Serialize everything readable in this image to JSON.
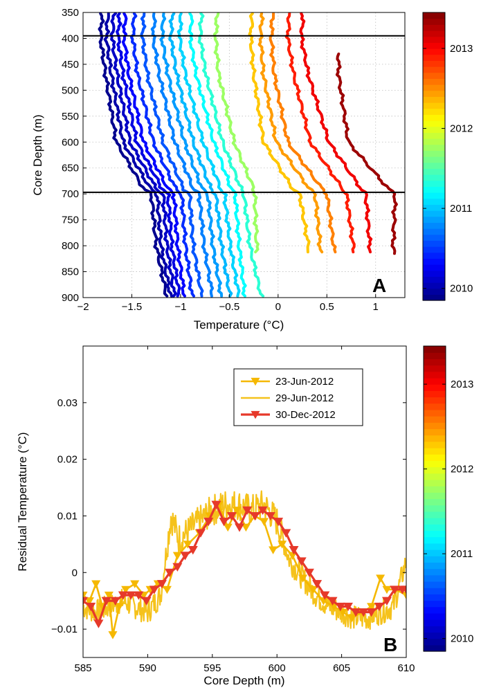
{
  "chart_data": [
    {
      "panel": "A",
      "type": "line",
      "xlabel": "Temperature (°C)",
      "ylabel": "Core Depth (m)",
      "xlim": [
        -2,
        1.3
      ],
      "ylim": [
        350,
        900
      ],
      "y_reversed": true,
      "xticks": [
        -2,
        -1.5,
        -1,
        -0.5,
        0,
        0.5,
        1
      ],
      "xtick_labels": [
        "−2",
        "−1.5",
        "−1",
        "−0.5",
        "0",
        "0.5",
        "1"
      ],
      "yticks": [
        350,
        400,
        450,
        500,
        550,
        600,
        650,
        700,
        750,
        800,
        850,
        900
      ],
      "ytick_labels": [
        "350",
        "400",
        "450",
        "500",
        "550",
        "600",
        "650",
        "700",
        "750",
        "800",
        "850",
        "900"
      ],
      "grid": true,
      "reference_lines_depth": [
        395,
        697
      ],
      "colorbar": {
        "colormap": "jet",
        "ticks": [
          2010,
          2011,
          2012,
          2013
        ],
        "tick_labels": [
          "2010",
          "2011",
          "2012",
          "2013"
        ],
        "range": [
          2009.85,
          2013.45
        ]
      },
      "series_note": "approximately 38 temperature profiles, colored by measurement date",
      "series": [
        {
          "date": 2009.9,
          "t400": -1.82,
          "t470": -1.77,
          "t600": -1.66,
          "t690": -1.38,
          "t700": -1.3,
          "t800": -1.25,
          "t900": -1.14
        },
        {
          "date": 2010.0,
          "t400": -1.76,
          "t470": -1.71,
          "t600": -1.59,
          "t690": -1.31,
          "t700": -1.24,
          "t800": -1.2,
          "t900": -1.1
        },
        {
          "date": 2010.1,
          "t400": -1.7,
          "t470": -1.65,
          "t600": -1.52,
          "t690": -1.25,
          "t700": -1.18,
          "t800": -1.14,
          "t900": -1.06
        },
        {
          "date": 2010.2,
          "t400": -1.64,
          "t470": -1.59,
          "t600": -1.45,
          "t690": -1.19,
          "t700": -1.13,
          "t800": -1.09,
          "t900": -1.01
        },
        {
          "date": 2010.3,
          "t400": -1.58,
          "t470": -1.53,
          "t600": -1.38,
          "t690": -1.13,
          "t700": -1.07,
          "t800": -1.03,
          "t900": -0.96
        },
        {
          "date": 2010.45,
          "t400": -1.49,
          "t470": -1.44,
          "t600": -1.28,
          "t690": -1.05,
          "t700": -0.99,
          "t800": -0.95,
          "t900": -0.88
        },
        {
          "date": 2010.6,
          "t400": -1.39,
          "t470": -1.34,
          "t600": -1.18,
          "t690": -0.97,
          "t700": -0.91,
          "t800": -0.87,
          "t900": -0.78
        },
        {
          "date": 2010.75,
          "t400": -1.28,
          "t470": -1.22,
          "t600": -1.06,
          "t690": -0.87,
          "t700": -0.81,
          "t800": -0.76,
          "t900": -0.67
        },
        {
          "date": 2010.85,
          "t400": -1.19,
          "t470": -1.13,
          "t600": -0.96,
          "t690": -0.78,
          "t700": -0.72,
          "t800": -0.67,
          "t900": -0.58
        },
        {
          "date": 2010.95,
          "t400": -1.1,
          "t470": -1.04,
          "t600": -0.87,
          "t690": -0.69,
          "t700": -0.64,
          "t800": -0.58,
          "t900": -0.49
        },
        {
          "date": 2011.05,
          "t400": -1.01,
          "t470": -0.95,
          "t600": -0.77,
          "t690": -0.59,
          "t700": -0.55,
          "t800": -0.49,
          "t900": -0.4
        },
        {
          "date": 2011.2,
          "t400": -0.9,
          "t470": -0.84,
          "t600": -0.66,
          "t690": -0.48,
          "t700": -0.44,
          "t800": -0.4,
          "t900": -0.34
        },
        {
          "date": 2011.35,
          "t400": -0.8,
          "t470": -0.74,
          "t600": -0.57,
          "t690": -0.38,
          "t700": -0.35,
          "t800": -0.29,
          "t900": -0.17
        },
        {
          "date": 2011.75,
          "t400": -0.64,
          "t470": -0.61,
          "t600": -0.45,
          "t690": -0.25,
          "t700": -0.24,
          "t800": -0.22,
          "t900": null
        },
        {
          "date": 2012.3,
          "t400": -0.28,
          "t470": -0.25,
          "t600": -0.15,
          "t690": 0.15,
          "t700": 0.22,
          "t800": 0.31,
          "t900": null
        },
        {
          "date": 2012.45,
          "t400": -0.18,
          "t470": -0.15,
          "t600": -0.02,
          "t690": 0.32,
          "t700": 0.38,
          "t800": 0.43,
          "t900": null
        },
        {
          "date": 2012.55,
          "t400": -0.07,
          "t470": -0.04,
          "t600": 0.1,
          "t690": 0.45,
          "t700": 0.5,
          "t800": 0.57,
          "t900": null
        },
        {
          "date": 2012.9,
          "t400": 0.1,
          "t470": 0.16,
          "t600": 0.33,
          "t690": 0.66,
          "t700": 0.7,
          "t800": 0.77,
          "t900": null
        },
        {
          "date": 2013.05,
          "t400": 0.24,
          "t470": 0.31,
          "t600": 0.52,
          "t690": 0.85,
          "t700": 0.9,
          "t800": 0.94,
          "t900": null
        },
        {
          "date": 2013.35,
          "t400": null,
          "t470": 0.62,
          "t600": 0.72,
          "t690": 1.13,
          "t700": 1.2,
          "t800": 1.18,
          "t900": null
        }
      ]
    },
    {
      "panel": "B",
      "type": "line",
      "xlabel": "Core Depth (m)",
      "ylabel": "Residual Temperature (°C)",
      "xlim": [
        585,
        610
      ],
      "ylim": [
        -0.015,
        0.04
      ],
      "xticks": [
        585,
        590,
        595,
        600,
        605,
        610
      ],
      "xtick_labels": [
        "585",
        "590",
        "595",
        "600",
        "605",
        "610"
      ],
      "yticks": [
        -0.01,
        0,
        0.01,
        0.02,
        0.03
      ],
      "ytick_labels": [
        "−0.01",
        "0",
        "0.01",
        "0.02",
        "0.03"
      ],
      "grid": false,
      "legend_placement": "upper-right",
      "colorbar": {
        "colormap": "jet",
        "ticks": [
          2010,
          2011,
          2012,
          2013
        ],
        "tick_labels": [
          "2010",
          "2011",
          "2012",
          "2013"
        ],
        "range": [
          2009.85,
          2013.45
        ]
      },
      "series": [
        {
          "name": "23-Jun-2012",
          "color": "#f5b800",
          "marker": "triangle-down",
          "x": [
            585.0,
            585.5,
            586.0,
            586.5,
            587.0,
            587.3,
            587.8,
            588.3,
            589.0,
            589.7,
            590.2,
            590.8,
            591.5,
            592.3,
            593.1,
            594.0,
            594.8,
            595.5,
            596.2,
            596.9,
            597.6,
            598.3,
            599.0,
            599.7,
            600.4,
            601.2,
            602.0,
            602.8,
            603.6,
            604.4,
            605.1,
            605.8,
            606.6,
            607.3,
            608.0,
            608.5,
            609.2,
            610.0
          ],
          "y": [
            -0.004,
            -0.005,
            -0.002,
            -0.006,
            -0.004,
            -0.011,
            -0.006,
            -0.003,
            -0.002,
            -0.004,
            -0.003,
            -0.002,
            -0.003,
            0.003,
            0.005,
            0.007,
            0.01,
            0.012,
            0.008,
            0.011,
            0.008,
            0.01,
            0.009,
            0.004,
            0.005,
            0.003,
            -0.001,
            -0.003,
            -0.005,
            -0.006,
            -0.007,
            -0.008,
            -0.007,
            -0.006,
            -0.001,
            -0.003,
            -0.003,
            -0.004
          ]
        },
        {
          "name": "29-Jun-2012",
          "color": "#f5c21b",
          "marker": "none",
          "x": [
            585.0,
            586.0,
            587.0,
            588.0,
            589.0,
            590.0,
            591.0,
            591.8,
            592.4,
            593.0,
            594.0,
            595.0,
            596.0,
            597.0,
            598.0,
            599.0,
            600.0,
            601.0,
            602.0,
            603.0,
            604.0,
            605.0,
            606.0,
            607.0,
            608.0,
            609.0,
            610.0
          ],
          "y": [
            -0.006,
            -0.007,
            -0.006,
            -0.005,
            -0.006,
            -0.007,
            -0.004,
            0.01,
            0.006,
            0.007,
            0.009,
            0.011,
            0.012,
            0.012,
            0.011,
            0.012,
            0.009,
            0.002,
            -0.001,
            -0.004,
            -0.006,
            -0.007,
            -0.008,
            -0.008,
            -0.007,
            -0.006,
            0.002
          ]
        },
        {
          "name": "30-Dec-2012",
          "color": "#e6392a",
          "marker": "triangle-down",
          "x": [
            585.0,
            585.6,
            586.2,
            586.8,
            587.5,
            588.1,
            588.7,
            589.3,
            589.9,
            590.5,
            591.1,
            591.7,
            592.3,
            592.9,
            593.5,
            594.1,
            594.7,
            595.3,
            595.9,
            596.5,
            597.1,
            597.7,
            598.3,
            598.9,
            599.5,
            600.1,
            600.7,
            601.3,
            601.9,
            602.5,
            603.1,
            603.7,
            604.3,
            604.9,
            605.5,
            606.1,
            606.7,
            607.3,
            607.9,
            608.5,
            609.1,
            609.7,
            610.0
          ],
          "y": [
            -0.005,
            -0.006,
            -0.009,
            -0.005,
            -0.005,
            -0.004,
            -0.004,
            -0.004,
            -0.005,
            -0.003,
            -0.002,
            0.0,
            0.001,
            0.003,
            0.004,
            0.007,
            0.009,
            0.012,
            0.009,
            0.01,
            0.008,
            0.011,
            0.01,
            0.011,
            0.01,
            0.009,
            0.007,
            0.004,
            0.002,
            0.0,
            -0.002,
            -0.004,
            -0.005,
            -0.006,
            -0.006,
            -0.007,
            -0.007,
            -0.007,
            -0.006,
            -0.005,
            -0.003,
            -0.003,
            -0.003
          ]
        }
      ]
    }
  ],
  "panel_labels": {
    "a": "A",
    "b": "B"
  }
}
